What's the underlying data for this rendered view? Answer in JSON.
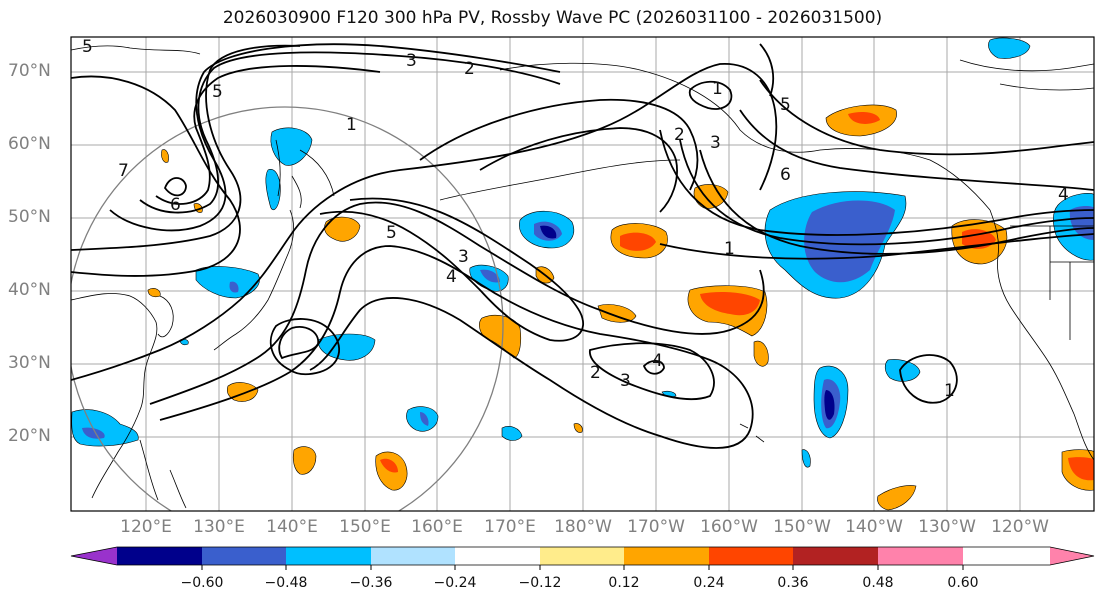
{
  "title": "2026030900 F120 300 hPa PV, Rossby Wave PC (2026031100 - 2026031500)",
  "lat_labels": [
    "70°N",
    "60°N",
    "50°N",
    "40°N",
    "30°N",
    "20°N"
  ],
  "lon_labels": [
    "120°E",
    "130°E",
    "140°E",
    "150°E",
    "160°E",
    "170°E",
    "180°W",
    "170°W",
    "160°W",
    "150°W",
    "140°W",
    "130°W",
    "120°W"
  ],
  "contour_labels": [
    "3",
    "2",
    "5",
    "1",
    "5",
    "7",
    "6",
    "5",
    "3",
    "4",
    "3",
    "2",
    "4",
    "1",
    "5",
    "2",
    "1",
    "6",
    "4",
    "1",
    "3"
  ],
  "colorbar": {
    "tick_labels": [
      "−0.60",
      "−0.48",
      "−0.36",
      "−0.24",
      "−0.12",
      "0.12",
      "0.24",
      "0.36",
      "0.48",
      "0.60"
    ],
    "colors": [
      "#9932cc",
      "#00008b",
      "#3a5fcd",
      "#00bfff",
      "#b0e2ff",
      "#ffffff",
      "#ffec8b",
      "#ffa500",
      "#ff4500",
      "#b22222",
      "#ff82ab"
    ]
  }
}
